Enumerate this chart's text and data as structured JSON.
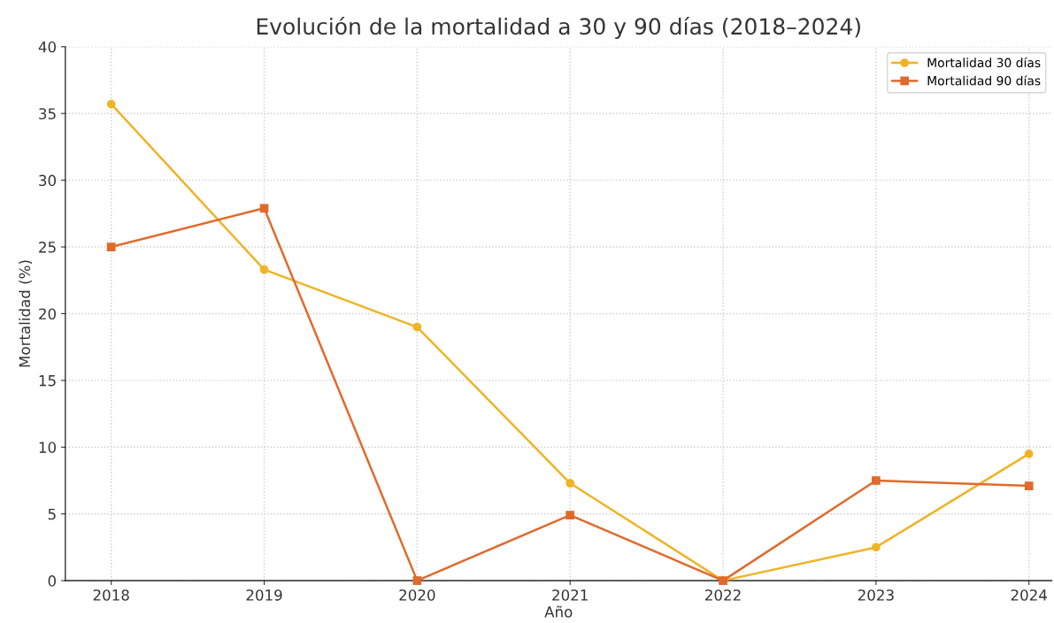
{
  "chart_data": {
    "type": "line",
    "title": "Evolución de la mortalidad a 30 y 90 días (2018–2024)",
    "xlabel": "Año",
    "ylabel": "Mortalidad (%)",
    "x": [
      2018,
      2019,
      2020,
      2021,
      2022,
      2023,
      2024
    ],
    "series": [
      {
        "name": "Mortalidad 30 días",
        "color": "#f0b323",
        "marker": "circle",
        "values": [
          35.7,
          23.3,
          19.0,
          7.3,
          0,
          2.5,
          9.5
        ]
      },
      {
        "name": "Mortalidad 90 días",
        "color": "#e06a2b",
        "marker": "square",
        "values": [
          25.0,
          27.9,
          0,
          4.9,
          0,
          7.5,
          7.1
        ]
      }
    ],
    "xlim": [
      2017.7,
      2024.15
    ],
    "xticks": [
      2018,
      2019,
      2020,
      2021,
      2022,
      2023,
      2024
    ],
    "ylim": [
      0,
      40
    ],
    "yticks": [
      0,
      5,
      10,
      15,
      20,
      25,
      30,
      35,
      40
    ],
    "grid": true,
    "legend": "top right",
    "line_style": "solid"
  }
}
